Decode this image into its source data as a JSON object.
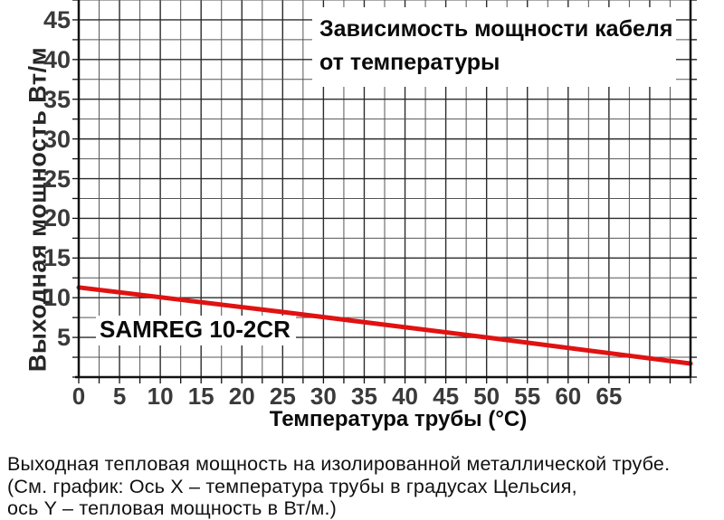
{
  "title": {
    "line1": "Зависимость мощности кабеля",
    "line2": "от температуры"
  },
  "series_label": "SAMREG 10-2CR",
  "axes": {
    "x_label": "Температура трубы (°C)",
    "y_label": "Выходная мощность Вт/м",
    "x_tick_labels": [
      0,
      5,
      10,
      15,
      20,
      25,
      30,
      35,
      40,
      45,
      50,
      55,
      60,
      65
    ],
    "y_tick_labels": [
      5,
      10,
      15,
      20,
      25,
      30,
      35,
      40,
      45
    ]
  },
  "caption": {
    "line1": "Выходная тепловая мощность на изолированной металлической трубе.",
    "line2": "(См. график: Ось X – температура трубы в градусах Цельсия,",
    "line3": "ось Y –  тепловая мощность в Вт/м.)"
  },
  "colors": {
    "line": "#e01212",
    "grid_minor": "#555555",
    "grid_major": "#2b2b2b",
    "axis": "#111111",
    "tick_label": "#3a3a3a"
  },
  "chart_data": {
    "type": "line",
    "title": "Зависимость мощности кабеля от температуры",
    "xlabel": "Температура трубы (°C)",
    "ylabel": "Выходная мощность Вт/м",
    "xlim": [
      0,
      75
    ],
    "ylim": [
      0,
      47.5
    ],
    "grid": true,
    "grid_step": 2.5,
    "major_step": 5,
    "legend_position": "inline-label",
    "series": [
      {
        "name": "SAMREG 10-2CR",
        "x": [
          0,
          25,
          50,
          75
        ],
        "y": [
          11.3,
          8.2,
          5.0,
          1.7
        ]
      }
    ]
  }
}
